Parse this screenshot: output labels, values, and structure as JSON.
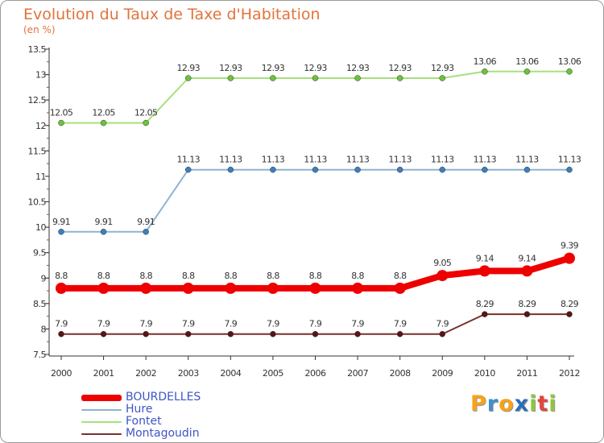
{
  "chart_data": {
    "type": "line",
    "title": "Evolution du Taux de Taxe d'Habitation",
    "subtitle": "(en %)",
    "x": [
      "2000",
      "2001",
      "2002",
      "2003",
      "2004",
      "2005",
      "2006",
      "2007",
      "2008",
      "2009",
      "2010",
      "2011",
      "2012"
    ],
    "y_ticks": [
      "7.5",
      "8",
      "8.5",
      "9",
      "9.5",
      "10",
      "10.5",
      "11",
      "11.5",
      "12",
      "12.5",
      "13",
      "13.5"
    ],
    "ylim": [
      7.5,
      13.5
    ],
    "series": [
      {
        "name": "Montagoudin",
        "color": "#7a2f2f",
        "marker_color": "#5a1515",
        "values": [
          7.9,
          7.9,
          7.9,
          7.9,
          7.9,
          7.9,
          7.9,
          7.9,
          7.9,
          7.9,
          8.29,
          8.29,
          8.29
        ],
        "labels": [
          "7.9",
          "7.9",
          "7.9",
          "7.9",
          "7.9",
          "7.9",
          "7.9",
          "7.9",
          "7.9",
          "7.9",
          "8.29",
          "8.29",
          "8.29"
        ]
      },
      {
        "name": "Hure",
        "color": "#8fb3d1",
        "marker_color": "#3d7fbd",
        "values": [
          9.91,
          9.91,
          9.91,
          11.13,
          11.13,
          11.13,
          11.13,
          11.13,
          11.13,
          11.13,
          11.13,
          11.13,
          11.13
        ],
        "labels": [
          "9.91",
          "9.91",
          "9.91",
          "11.13",
          "11.13",
          "11.13",
          "11.13",
          "11.13",
          "11.13",
          "11.13",
          "11.13",
          "11.13",
          "11.13"
        ]
      },
      {
        "name": "Fontet",
        "color": "#a6e07e",
        "marker_color": "#6cc33c",
        "values": [
          12.05,
          12.05,
          12.05,
          12.93,
          12.93,
          12.93,
          12.93,
          12.93,
          12.93,
          12.93,
          13.06,
          13.06,
          13.06
        ],
        "labels": [
          "12.05",
          "12.05",
          "12.05",
          "12.93",
          "12.93",
          "12.93",
          "12.93",
          "12.93",
          "12.93",
          "12.93",
          "13.06",
          "13.06",
          "13.06"
        ]
      },
      {
        "name": "BOURDELLES",
        "color": "#ee0000",
        "marker_color": "#ee0000",
        "values": [
          8.8,
          8.8,
          8.8,
          8.8,
          8.8,
          8.8,
          8.8,
          8.8,
          8.8,
          9.05,
          9.14,
          9.14,
          9.39
        ],
        "labels": [
          "8.8",
          "8.8",
          "8.8",
          "8.8",
          "8.8",
          "8.8",
          "8.8",
          "8.8",
          "8.8",
          "9.05",
          "9.14",
          "9.14",
          "9.39"
        ]
      }
    ],
    "legend": [
      "BOURDELLES",
      "Hure",
      "Fontet",
      "Montagoudin"
    ],
    "legend_position": "bottom-left",
    "grid": false
  },
  "logo": {
    "letters": [
      "P",
      "r",
      "o",
      "x",
      "i",
      "t",
      "i"
    ],
    "colors": [
      "#f7a21b",
      "#3f8ed0",
      "#f7a21b",
      "#2a6fb8",
      "#8ec63f",
      "#e2463b",
      "#8ec63f"
    ]
  }
}
